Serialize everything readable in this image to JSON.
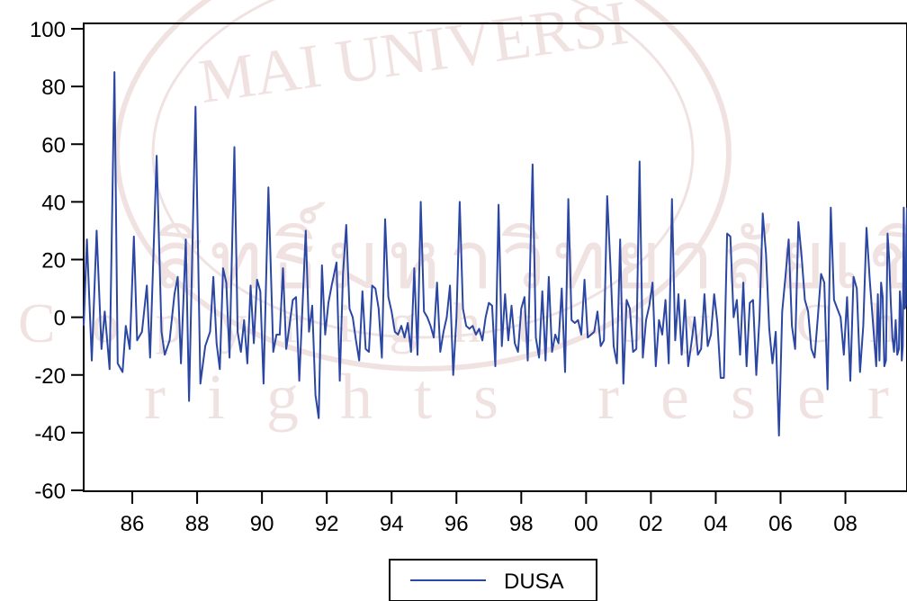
{
  "chart_data": {
    "type": "line",
    "title": "",
    "xlabel": "",
    "ylabel": "",
    "ylim": [
      -60,
      100
    ],
    "yticks": [
      -60,
      -40,
      -20,
      0,
      20,
      40,
      60,
      80,
      100
    ],
    "ytick_labels": [
      "-60",
      "-40",
      "-20",
      "0",
      "20",
      "40",
      "60",
      "80",
      "100"
    ],
    "xlim": [
      1984.5,
      2009.9
    ],
    "xticks": [
      1986,
      1988,
      1990,
      1992,
      1994,
      1996,
      1998,
      2000,
      2002,
      2004,
      2006,
      2008
    ],
    "xtick_labels": [
      "86",
      "88",
      "90",
      "92",
      "94",
      "96",
      "98",
      "00",
      "02",
      "04",
      "06",
      "08"
    ],
    "legend": {
      "position": "bottom-center",
      "entries": [
        "DUSA"
      ]
    },
    "grid": false,
    "series": [
      {
        "name": "DUSA",
        "color": "#2b47a3",
        "points": [
          [
            1984.5,
            -3
          ],
          [
            1984.6,
            27
          ],
          [
            1984.75,
            -15
          ],
          [
            1984.9,
            30
          ],
          [
            1985.05,
            -11
          ],
          [
            1985.15,
            2
          ],
          [
            1985.3,
            -18
          ],
          [
            1985.45,
            85
          ],
          [
            1985.55,
            -16
          ],
          [
            1985.7,
            -19
          ],
          [
            1985.8,
            -3
          ],
          [
            1985.92,
            -11
          ],
          [
            1986.05,
            28
          ],
          [
            1986.15,
            -8
          ],
          [
            1986.3,
            -5
          ],
          [
            1986.45,
            11
          ],
          [
            1986.55,
            -14
          ],
          [
            1986.75,
            56
          ],
          [
            1986.9,
            -5
          ],
          [
            1987.0,
            -13
          ],
          [
            1987.15,
            -8
          ],
          [
            1987.3,
            8
          ],
          [
            1987.4,
            14
          ],
          [
            1987.5,
            -16
          ],
          [
            1987.65,
            27
          ],
          [
            1987.75,
            -29
          ],
          [
            1987.95,
            73
          ],
          [
            1988.1,
            -23
          ],
          [
            1988.25,
            -10
          ],
          [
            1988.4,
            -5
          ],
          [
            1988.5,
            14
          ],
          [
            1988.6,
            -9
          ],
          [
            1988.7,
            -18
          ],
          [
            1988.8,
            17
          ],
          [
            1988.9,
            12
          ],
          [
            1989.0,
            -14
          ],
          [
            1989.15,
            59
          ],
          [
            1989.25,
            -5
          ],
          [
            1989.35,
            -12
          ],
          [
            1989.45,
            -1
          ],
          [
            1989.55,
            -16
          ],
          [
            1989.65,
            11
          ],
          [
            1989.75,
            -9
          ],
          [
            1989.85,
            13
          ],
          [
            1989.95,
            9
          ],
          [
            1990.05,
            -23
          ],
          [
            1990.2,
            45
          ],
          [
            1990.35,
            -12
          ],
          [
            1990.45,
            -6
          ],
          [
            1990.55,
            -6
          ],
          [
            1990.65,
            17
          ],
          [
            1990.75,
            -11
          ],
          [
            1990.85,
            -3
          ],
          [
            1990.95,
            6
          ],
          [
            1991.05,
            7
          ],
          [
            1991.15,
            -22
          ],
          [
            1991.35,
            30
          ],
          [
            1991.45,
            -5
          ],
          [
            1991.55,
            4
          ],
          [
            1991.65,
            -27
          ],
          [
            1991.75,
            -35
          ],
          [
            1991.85,
            18
          ],
          [
            1991.95,
            -6
          ],
          [
            1992.05,
            5
          ],
          [
            1992.15,
            11
          ],
          [
            1992.3,
            19
          ],
          [
            1992.4,
            -22
          ],
          [
            1992.5,
            15
          ],
          [
            1992.6,
            32
          ],
          [
            1992.7,
            3
          ],
          [
            1992.8,
            0
          ],
          [
            1992.9,
            -8
          ],
          [
            1993.0,
            -15
          ],
          [
            1993.1,
            9
          ],
          [
            1993.2,
            -11
          ],
          [
            1993.3,
            -12
          ],
          [
            1993.4,
            11
          ],
          [
            1993.5,
            10
          ],
          [
            1993.6,
            3
          ],
          [
            1993.7,
            -14
          ],
          [
            1993.8,
            34
          ],
          [
            1993.9,
            7
          ],
          [
            1994.0,
            2
          ],
          [
            1994.1,
            -5
          ],
          [
            1994.2,
            -6
          ],
          [
            1994.3,
            -3
          ],
          [
            1994.4,
            -7
          ],
          [
            1994.5,
            -2
          ],
          [
            1994.6,
            -12
          ],
          [
            1994.7,
            17
          ],
          [
            1994.8,
            -13
          ],
          [
            1994.9,
            40
          ],
          [
            1995.0,
            2
          ],
          [
            1995.1,
            0
          ],
          [
            1995.2,
            -3
          ],
          [
            1995.3,
            -7
          ],
          [
            1995.4,
            12
          ],
          [
            1995.5,
            -12
          ],
          [
            1995.6,
            -5
          ],
          [
            1995.7,
            0
          ],
          [
            1995.8,
            11
          ],
          [
            1995.9,
            -20
          ],
          [
            1996.0,
            0
          ],
          [
            1996.1,
            40
          ],
          [
            1996.2,
            3
          ],
          [
            1996.3,
            -3
          ],
          [
            1996.4,
            -4
          ],
          [
            1996.5,
            -3
          ],
          [
            1996.6,
            -6
          ],
          [
            1996.7,
            -4
          ],
          [
            1996.8,
            -8
          ],
          [
            1996.9,
            0
          ],
          [
            1997.0,
            5
          ],
          [
            1997.1,
            4
          ],
          [
            1997.2,
            -17
          ],
          [
            1997.3,
            39
          ],
          [
            1997.4,
            -10
          ],
          [
            1997.5,
            8
          ],
          [
            1997.6,
            -8
          ],
          [
            1997.7,
            4
          ],
          [
            1997.8,
            -9
          ],
          [
            1997.9,
            -12
          ],
          [
            1998.0,
            3
          ],
          [
            1998.1,
            7
          ],
          [
            1998.2,
            -15
          ],
          [
            1998.35,
            53
          ],
          [
            1998.45,
            -7
          ],
          [
            1998.55,
            -14
          ],
          [
            1998.65,
            9
          ],
          [
            1998.75,
            -15
          ],
          [
            1998.85,
            14
          ],
          [
            1998.95,
            -12
          ],
          [
            1999.05,
            -6
          ],
          [
            1999.15,
            -9
          ],
          [
            1999.25,
            10
          ],
          [
            1999.35,
            -19
          ],
          [
            1999.45,
            41
          ],
          [
            1999.55,
            -1
          ],
          [
            1999.65,
            -2
          ],
          [
            1999.75,
            -1
          ],
          [
            1999.85,
            -6
          ],
          [
            1999.95,
            13
          ],
          [
            2000.05,
            -7
          ],
          [
            2000.15,
            -6
          ],
          [
            2000.25,
            -5
          ],
          [
            2000.35,
            2
          ],
          [
            2000.45,
            -10
          ],
          [
            2000.55,
            -8
          ],
          [
            2000.65,
            42
          ],
          [
            2000.75,
            18
          ],
          [
            2000.85,
            -10
          ],
          [
            2000.95,
            -16
          ],
          [
            2001.05,
            27
          ],
          [
            2001.15,
            -23
          ],
          [
            2001.25,
            6
          ],
          [
            2001.35,
            3
          ],
          [
            2001.45,
            -12
          ],
          [
            2001.55,
            -11
          ],
          [
            2001.65,
            54
          ],
          [
            2001.75,
            -14
          ],
          [
            2001.85,
            -1
          ],
          [
            2001.95,
            4
          ],
          [
            2002.05,
            12
          ],
          [
            2002.15,
            -17
          ],
          [
            2002.25,
            -1
          ],
          [
            2002.35,
            -6
          ],
          [
            2002.45,
            6
          ],
          [
            2002.55,
            -16
          ],
          [
            2002.65,
            41
          ],
          [
            2002.75,
            -8
          ],
          [
            2002.85,
            8
          ],
          [
            2002.95,
            -13
          ],
          [
            2003.05,
            6
          ],
          [
            2003.15,
            -17
          ],
          [
            2003.25,
            -9
          ],
          [
            2003.35,
            0
          ],
          [
            2003.45,
            -13
          ],
          [
            2003.55,
            -11
          ],
          [
            2003.65,
            8
          ],
          [
            2003.75,
            -10
          ],
          [
            2003.85,
            -6
          ],
          [
            2003.95,
            8
          ],
          [
            2004.05,
            -2
          ],
          [
            2004.15,
            -21
          ],
          [
            2004.25,
            -21
          ],
          [
            2004.35,
            29
          ],
          [
            2004.45,
            28
          ],
          [
            2004.55,
            0
          ],
          [
            2004.65,
            6
          ],
          [
            2004.75,
            -13
          ],
          [
            2004.85,
            12
          ],
          [
            2004.95,
            -17
          ],
          [
            2005.05,
            5
          ],
          [
            2005.15,
            6
          ],
          [
            2005.25,
            -20
          ],
          [
            2005.35,
            0
          ],
          [
            2005.45,
            36
          ],
          [
            2005.55,
            22
          ],
          [
            2005.65,
            -4
          ],
          [
            2005.75,
            -16
          ],
          [
            2005.85,
            -5
          ],
          [
            2005.95,
            -41
          ],
          [
            2006.05,
            2
          ],
          [
            2006.15,
            14
          ],
          [
            2006.25,
            27
          ],
          [
            2006.35,
            -3
          ],
          [
            2006.45,
            -11
          ],
          [
            2006.55,
            33
          ],
          [
            2006.65,
            21
          ],
          [
            2006.75,
            6
          ],
          [
            2006.85,
            2
          ],
          [
            2006.95,
            -11
          ],
          [
            2007.05,
            -14
          ],
          [
            2007.15,
            0
          ],
          [
            2007.25,
            15
          ],
          [
            2007.35,
            12
          ],
          [
            2007.45,
            -25
          ],
          [
            2007.55,
            38
          ],
          [
            2007.65,
            6
          ],
          [
            2007.75,
            3
          ],
          [
            2007.85,
            0
          ],
          [
            2007.95,
            -13
          ],
          [
            2008.05,
            7
          ],
          [
            2008.15,
            -22
          ],
          [
            2008.25,
            14
          ],
          [
            2008.35,
            10
          ],
          [
            2008.45,
            -19
          ],
          [
            2008.55,
            -3
          ],
          [
            2008.65,
            31
          ],
          [
            2008.75,
            13
          ],
          [
            2008.85,
            -2
          ],
          [
            2008.95,
            -17
          ],
          [
            2009.0,
            8
          ],
          [
            2009.05,
            -15
          ],
          [
            2009.1,
            12
          ],
          [
            2009.15,
            7
          ],
          [
            2009.2,
            -17
          ],
          [
            2009.25,
            -15
          ],
          [
            2009.3,
            29
          ],
          [
            2009.35,
            20
          ],
          [
            2009.4,
            5
          ],
          [
            2009.45,
            -7
          ],
          [
            2009.5,
            -12
          ],
          [
            2009.55,
            -1
          ],
          [
            2009.6,
            -13
          ],
          [
            2009.65,
            -11
          ],
          [
            2009.68,
            9
          ],
          [
            2009.71,
            4
          ],
          [
            2009.74,
            -15
          ],
          [
            2009.77,
            -10
          ],
          [
            2009.8,
            38
          ],
          [
            2009.83,
            3
          ],
          [
            2009.86,
            4
          ],
          [
            2009.88,
            28
          ],
          [
            2009.9,
            38
          ]
        ]
      }
    ]
  }
}
